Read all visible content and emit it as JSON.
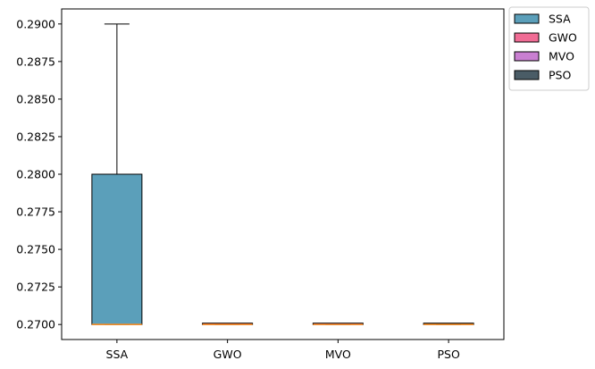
{
  "chart_data": {
    "type": "box",
    "title": "",
    "xlabel": "",
    "ylabel": "",
    "categories": [
      "SSA",
      "GWO",
      "MVO",
      "PSO"
    ],
    "ylim": [
      0.269,
      0.291
    ],
    "yticks": [
      0.27,
      0.2725,
      0.275,
      0.2775,
      0.28,
      0.2825,
      0.285,
      0.2875,
      0.29
    ],
    "ytick_labels": [
      "0.2700",
      "0.2725",
      "0.2750",
      "0.2775",
      "0.2800",
      "0.2825",
      "0.2850",
      "0.2875",
      "0.2900"
    ],
    "grid": false,
    "legend_position": "outside-top-right",
    "series": [
      {
        "name": "SSA",
        "color": "#5b9fba",
        "whislo": 0.27,
        "q1": 0.27,
        "median": 0.27,
        "q3": 0.28,
        "whishi": 0.29
      },
      {
        "name": "GWO",
        "color": "#f06c95",
        "whislo": 0.27,
        "q1": 0.27,
        "median": 0.27,
        "q3": 0.27,
        "whishi": 0.27
      },
      {
        "name": "MVO",
        "color": "#c97fd1",
        "whislo": 0.27,
        "q1": 0.27,
        "median": 0.27,
        "q3": 0.27,
        "whishi": 0.27
      },
      {
        "name": "PSO",
        "color": "#4a5c66",
        "whislo": 0.27,
        "q1": 0.27,
        "median": 0.27,
        "q3": 0.27,
        "whishi": 0.27
      }
    ],
    "median_color": "#ff8c1a"
  }
}
